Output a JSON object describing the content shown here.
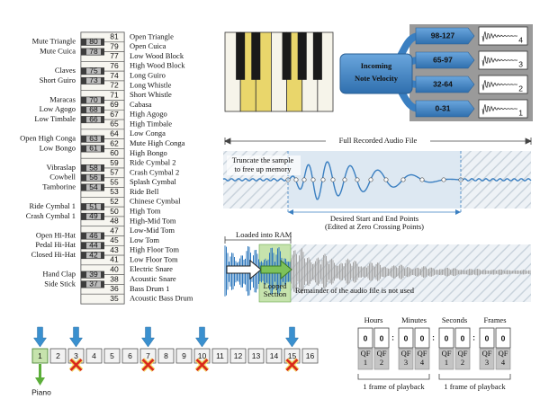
{
  "drum_map": {
    "white_keys": [
      {
        "note": "81",
        "name": "Open Triangle"
      },
      {
        "note": "79",
        "name": "Open Cuica"
      },
      {
        "note": "77",
        "name": "Low Wood Block"
      },
      {
        "note": "76",
        "name": "High Wood Block"
      },
      {
        "note": "74",
        "name": "Long Guiro"
      },
      {
        "note": "72",
        "name": "Long Whistle"
      },
      {
        "note": "71",
        "name": "Short Whistle"
      },
      {
        "note": "69",
        "name": "Cabasa"
      },
      {
        "note": "67",
        "name": "High Agogo"
      },
      {
        "note": "65",
        "name": "High Timbale"
      },
      {
        "note": "64",
        "name": "Low Conga"
      },
      {
        "note": "62",
        "name": "Mute High Conga"
      },
      {
        "note": "60",
        "name": "High Bongo"
      },
      {
        "note": "59",
        "name": "Ride Cymbal 2"
      },
      {
        "note": "57",
        "name": "Crash Cymbal 2"
      },
      {
        "note": "55",
        "name": "Splash Cymbal"
      },
      {
        "note": "53",
        "name": "Ride Bell"
      },
      {
        "note": "52",
        "name": "Chinese Cymbal"
      },
      {
        "note": "50",
        "name": "High Tom"
      },
      {
        "note": "48",
        "name": "High-Mid Tom"
      },
      {
        "note": "47",
        "name": "Low-Mid Tom"
      },
      {
        "note": "45",
        "name": "Low Tom"
      },
      {
        "note": "43",
        "name": "High Floor Tom"
      },
      {
        "note": "41",
        "name": "Low Floor Tom"
      },
      {
        "note": "40",
        "name": "Electric Snare"
      },
      {
        "note": "38",
        "name": "Acoustic Snare"
      },
      {
        "note": "36",
        "name": "Bass Drum 1"
      },
      {
        "note": "35",
        "name": "Acoustic Bass Drum"
      }
    ],
    "black_keys": [
      {
        "note": "80",
        "name": "Mute Triangle"
      },
      {
        "note": "78",
        "name": "Mute Cuica"
      },
      {
        "note": "75",
        "name": "Claves"
      },
      {
        "note": "73",
        "name": "Short Guiro"
      },
      {
        "note": "70",
        "name": "Maracas"
      },
      {
        "note": "68",
        "name": "Low Agogo"
      },
      {
        "note": "66",
        "name": "Low Timbale"
      },
      {
        "note": "63",
        "name": "Open High Conga"
      },
      {
        "note": "61",
        "name": "Low Bongo"
      },
      {
        "note": "58",
        "name": "Vibraslap"
      },
      {
        "note": "56",
        "name": "Cowbell"
      },
      {
        "note": "54",
        "name": "Tamborine"
      },
      {
        "note": "51",
        "name": "Ride Cymbal 1"
      },
      {
        "note": "49",
        "name": "Crash Cymbal 1"
      },
      {
        "note": "46",
        "name": "Open Hi-Hat"
      },
      {
        "note": "44",
        "name": "Pedal Hi-Hat"
      },
      {
        "note": "42",
        "name": "Closed Hi-Hat"
      },
      {
        "note": "39",
        "name": "Hand Clap"
      },
      {
        "note": "37",
        "name": "Side Stick"
      }
    ]
  },
  "velocity": {
    "title_lines": [
      "Incoming",
      "Note Velocity"
    ],
    "layers": [
      {
        "range": "98-127",
        "sample": "4"
      },
      {
        "range": "65-97",
        "sample": "3"
      },
      {
        "range": "32-64",
        "sample": "2"
      },
      {
        "range": "0-31",
        "sample": "1"
      }
    ]
  },
  "sample_edit": {
    "title": "Full Recorded Audio File",
    "truncate_lines": [
      "Truncate the sample",
      "to free up memory"
    ],
    "points_lines": [
      "Desired Start and End Points",
      "(Edited at Zero Crossing Points)"
    ]
  },
  "loop": {
    "ram": "Loaded into RAM",
    "looped_lines": [
      "Looped",
      "Section"
    ],
    "remainder": "Remainder of the audio file is not used"
  },
  "channels": {
    "numbers": [
      "1",
      "2",
      "3",
      "4",
      "5",
      "6",
      "7",
      "8",
      "9",
      "10",
      "11",
      "12",
      "13",
      "14",
      "15",
      "16"
    ],
    "instrument": "Piano"
  },
  "timecode": {
    "units": [
      "Hours",
      "Minutes",
      "Seconds",
      "Frames"
    ],
    "digits": [
      "0",
      "0",
      "0",
      "0",
      "0",
      "0",
      "0",
      "0"
    ],
    "separators": [
      ":",
      ":",
      ":"
    ],
    "qf": [
      {
        "label": "QF",
        "number": "1"
      },
      {
        "label": "QF",
        "number": "2"
      },
      {
        "label": "QF",
        "number": "3"
      },
      {
        "label": "QF",
        "number": "4"
      },
      {
        "label": "QF",
        "number": "1"
      },
      {
        "label": "QF",
        "number": "2"
      },
      {
        "label": "QF",
        "number": "3"
      },
      {
        "label": "QF",
        "number": "4"
      }
    ],
    "frame_notes": [
      "1 frame of playback",
      "1 frame of playback"
    ]
  }
}
